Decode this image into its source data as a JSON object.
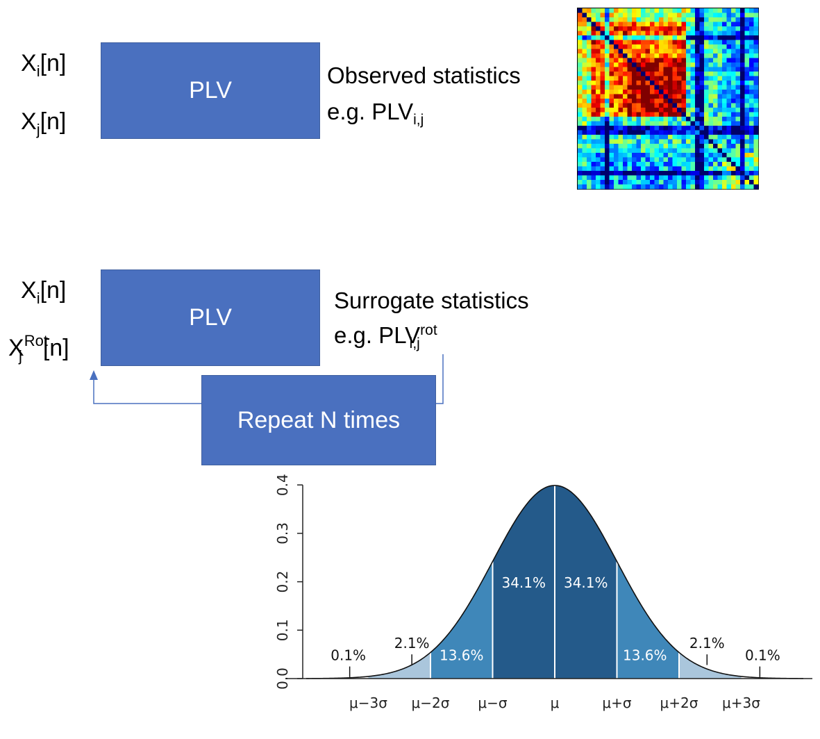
{
  "top": {
    "signal_i": {
      "base": "X",
      "sub": "i",
      "tail": "[n]"
    },
    "signal_j": {
      "base": "X",
      "sub": "j",
      "tail": "[n]"
    },
    "box_label": "PLV",
    "stat_title": "Observed statistics",
    "stat_example": {
      "prefix": "e.g. PLV",
      "sub": "i,j"
    }
  },
  "bottom": {
    "signal_i": {
      "base": "X",
      "sub": "i",
      "tail": "[n]"
    },
    "signal_j": {
      "base": "X",
      "sub": "j",
      "sup": "Rot",
      "tail": "[n]"
    },
    "box_label": "PLV",
    "stat_title": "Surrogate statistics",
    "stat_example": {
      "prefix": "e.g. PLV",
      "sup": "rot",
      "sub": "i,j"
    },
    "repeat_label": "Repeat N times"
  },
  "colors": {
    "box_fill": "#4a70bf",
    "arrow": "#4a70bf",
    "band_dark": "#245a8a",
    "band_mid": "#3f87b9",
    "band_light": "#7ca4c7",
    "band_lightest": "#aac6dc"
  },
  "chart_data": {
    "type": "area",
    "title": "",
    "xlabel": "",
    "ylabel": "",
    "ylim": [
      0,
      0.4
    ],
    "xlim": [
      -4,
      4
    ],
    "y_ticks": [
      "0.0",
      "0.1",
      "0.2",
      "0.3",
      "0.4"
    ],
    "x_ticks": [
      "μ−3σ",
      "μ−2σ",
      "μ−σ",
      "μ",
      "μ+σ",
      "μ+2σ",
      "μ+3σ"
    ],
    "x_tick_values": [
      -3,
      -2,
      -1,
      0,
      1,
      2,
      3
    ],
    "series": [
      {
        "values_function": "standard normal pdf"
      }
    ],
    "bands": [
      {
        "from": -3,
        "to": -2,
        "label": "2.1%"
      },
      {
        "from": -2,
        "to": -1,
        "label": "13.6%"
      },
      {
        "from": -1,
        "to": 0,
        "label": "34.1%"
      },
      {
        "from": 0,
        "to": 1,
        "label": "34.1%"
      },
      {
        "from": 1,
        "to": 2,
        "label": "13.6%"
      },
      {
        "from": 2,
        "to": 3,
        "label": "2.1%"
      }
    ],
    "tail_labels": [
      {
        "at": -3,
        "label": "0.1%"
      },
      {
        "at": 3,
        "label": "0.1%"
      }
    ]
  }
}
